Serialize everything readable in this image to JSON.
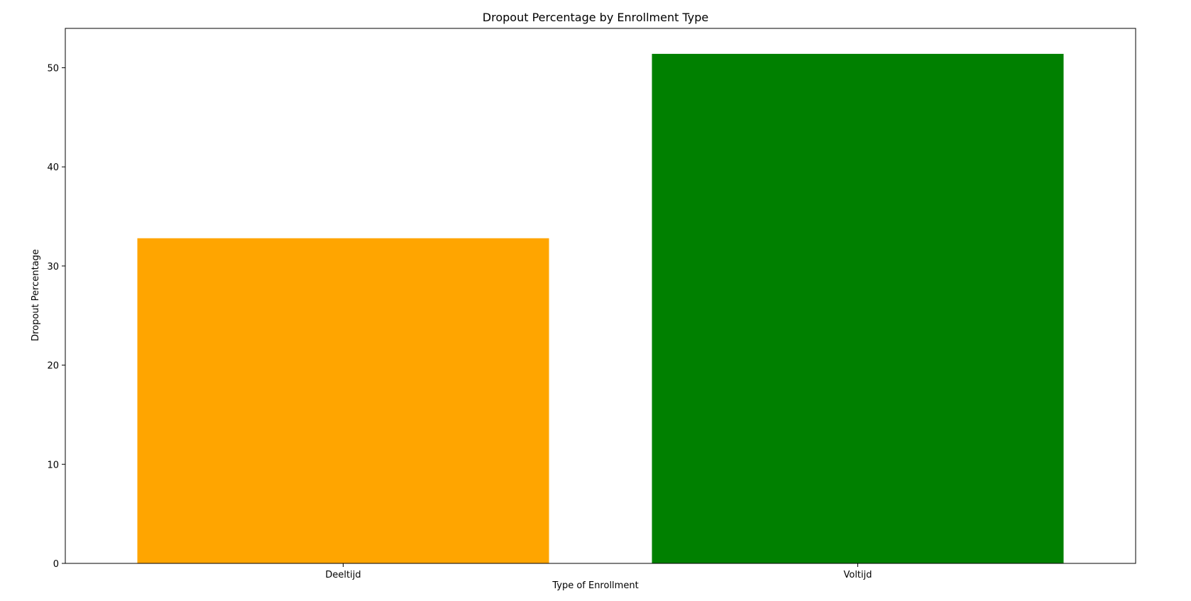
{
  "chart_data": {
    "type": "bar",
    "title": "Dropout Percentage by Enrollment Type",
    "xlabel": "Type of Enrollment",
    "ylabel": "Dropout Percentage",
    "categories": [
      "Deeltijd",
      "Voltijd"
    ],
    "values": [
      32.8,
      51.4
    ],
    "colors": [
      "#ffa500",
      "#008000"
    ],
    "ylim": [
      0,
      53.97
    ],
    "yticks": [
      0,
      10,
      20,
      30,
      40,
      50
    ],
    "grid": false
  }
}
